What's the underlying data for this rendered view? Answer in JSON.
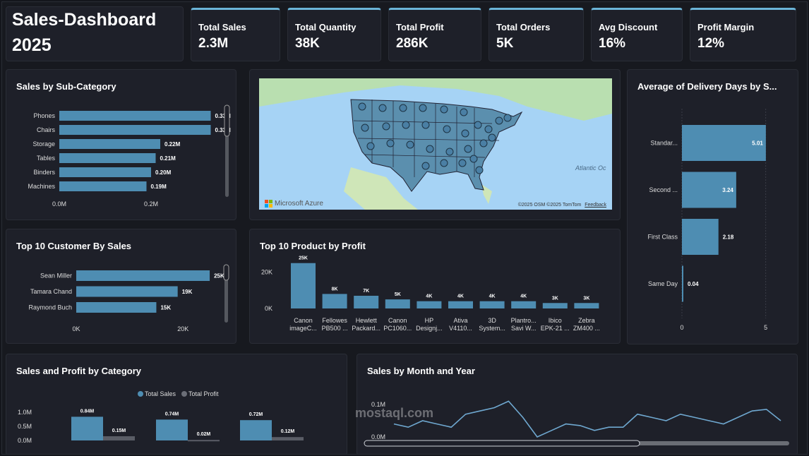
{
  "header": {
    "title_line1": "Sales-Dashboard",
    "title_line2": "2025"
  },
  "kpis": [
    {
      "label": "Total Sales",
      "value": "2.3M"
    },
    {
      "label": "Total Quantity",
      "value": "38K"
    },
    {
      "label": "Total Profit",
      "value": "286K"
    },
    {
      "label": "Total Orders",
      "value": "5K"
    },
    {
      "label": "Avg Discount",
      "value": "16%"
    },
    {
      "label": "Profit Margin",
      "value": "12%"
    }
  ],
  "colors": {
    "bar": "#4e8db2",
    "profit": "#5a5d66",
    "accent": "#6ab4d8",
    "line": "#6fa8d0"
  },
  "subcategory": {
    "title": "Sales by Sub-Category",
    "chart_data": {
      "type": "bar",
      "orientation": "horizontal",
      "categories": [
        "Phones",
        "Chairs",
        "Storage",
        "Tables",
        "Binders",
        "Machines"
      ],
      "values": [
        0.33,
        0.33,
        0.22,
        0.21,
        0.2,
        0.19
      ],
      "value_labels": [
        "0.33M",
        "0.33M",
        "0.22M",
        "0.21M",
        "0.20M",
        "0.19M"
      ],
      "xtick_labels": [
        "0.0M",
        "0.2M"
      ],
      "xticks": [
        0,
        0.2
      ],
      "xlim": [
        0,
        0.4
      ]
    }
  },
  "map": {
    "ocean_label": "Atlantic Oc",
    "logo": "Microsoft Azure",
    "attribution": "©2025 OSM  ©2025 TomTom",
    "feedback": "Feedback"
  },
  "delivery": {
    "title": "Average of Delivery Days by S...",
    "chart_data": {
      "type": "bar",
      "orientation": "horizontal",
      "categories": [
        "Standar...",
        "Second ...",
        "First Class",
        "Same Day"
      ],
      "values": [
        5.01,
        3.24,
        2.18,
        0.04
      ],
      "value_labels": [
        "5.01",
        "3.24",
        "2.18",
        "0.04"
      ],
      "xtick_labels": [
        "0",
        "5"
      ],
      "xticks": [
        0,
        5
      ],
      "xlim": [
        0,
        5.9
      ]
    }
  },
  "customers": {
    "title": "Top 10 Customer By Sales",
    "chart_data": {
      "type": "bar",
      "orientation": "horizontal",
      "categories": [
        "Sean Miller",
        "Tamara Chand",
        "Raymond Buch"
      ],
      "values": [
        25,
        19,
        15
      ],
      "value_labels": [
        "25K",
        "19K",
        "15K"
      ],
      "xtick_labels": [
        "0K",
        "20K"
      ],
      "xticks": [
        0,
        20
      ],
      "xlim": [
        0,
        32
      ]
    }
  },
  "products": {
    "title": "Top 10 Product by Profit",
    "chart_data": {
      "type": "bar",
      "categories": [
        [
          "Canon",
          "imageC..."
        ],
        [
          "Fellowes",
          "PB500 ..."
        ],
        [
          "Hewlett",
          "Packard..."
        ],
        [
          "Canon",
          "PC1060..."
        ],
        [
          "HP",
          "Designj..."
        ],
        [
          "Ativa",
          "V4110..."
        ],
        [
          "3D",
          "System..."
        ],
        [
          "Plantro...",
          "Savi W..."
        ],
        [
          "Ibico",
          "EPK-21 ..."
        ],
        [
          "Zebra",
          "ZM400 ..."
        ]
      ],
      "values": [
        25,
        8,
        7,
        5,
        4,
        4,
        4,
        4,
        3,
        3
      ],
      "value_labels": [
        "25K",
        "8K",
        "7K",
        "5K",
        "4K",
        "4K",
        "4K",
        "4K",
        "3K",
        "3K"
      ],
      "ytick_labels": [
        "20K",
        "0K"
      ],
      "yticks": [
        20,
        0
      ],
      "ylim": [
        0,
        28
      ]
    }
  },
  "category": {
    "title": "Sales and Profit by Category",
    "legend": [
      "Total Sales",
      "Total Profit"
    ],
    "chart_data": {
      "type": "bar",
      "categories": [
        "",
        "",
        ""
      ],
      "series": [
        {
          "name": "Total Sales",
          "values": [
            0.84,
            0.74,
            0.72
          ],
          "labels": [
            "0.84M",
            "0.74M",
            "0.72M"
          ]
        },
        {
          "name": "Total Profit",
          "values": [
            0.15,
            0.02,
            0.12
          ],
          "labels": [
            "0.15M",
            "0.02M",
            "0.12M"
          ]
        }
      ],
      "ytick_labels": [
        "1.0M",
        "0.5M",
        "0.0M"
      ],
      "yticks": [
        1.0,
        0.5,
        0.0
      ],
      "ylim": [
        0,
        1.2
      ]
    }
  },
  "monthly": {
    "title": "Sales by Month and Year",
    "chart_data": {
      "type": "line",
      "values": [
        0.04,
        0.03,
        0.05,
        0.04,
        0.03,
        0.07,
        0.08,
        0.09,
        0.11,
        0.06,
        0.0,
        0.02,
        0.04,
        0.035,
        0.02,
        0.03,
        0.03,
        0.07,
        0.06,
        0.05,
        0.07,
        0.06,
        0.05,
        0.04,
        0.06,
        0.08,
        0.085,
        0.05
      ],
      "ytick_labels": [
        "0.1M",
        "0.0M"
      ],
      "yticks": [
        0.1,
        0.0
      ],
      "ylim": [
        -0.02,
        0.12
      ]
    }
  },
  "watermark": "mostaql.com"
}
